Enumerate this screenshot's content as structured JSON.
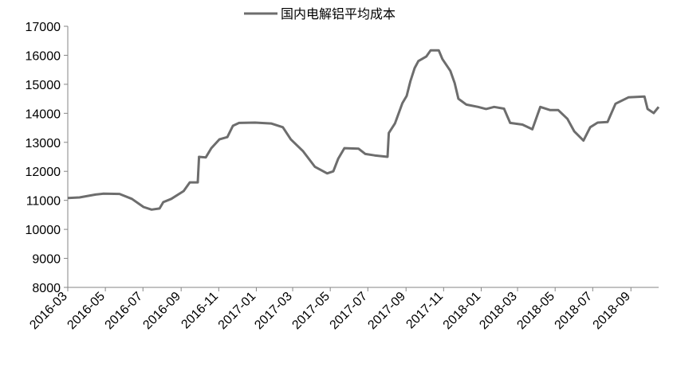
{
  "chart_data": {
    "type": "line",
    "title": "",
    "xlabel": "",
    "ylabel": "",
    "legend_position": "top",
    "grid": false,
    "ylim": [
      8000,
      17000
    ],
    "y_ticks": [
      "8000",
      "9000",
      "10000",
      "11000",
      "12000",
      "13000",
      "14000",
      "15000",
      "16000",
      "17000"
    ],
    "xlim": [
      "2016-03-01",
      "2018-10-16"
    ],
    "x_ticks": [
      "2016-03",
      "2016-05",
      "2016-07",
      "2016-09",
      "2016-11",
      "2017-01",
      "2017-03",
      "2017-05",
      "2017-07",
      "2017-09",
      "2017-11",
      "2018-01",
      "2018-03",
      "2018-05",
      "2018-07",
      "2018-09"
    ],
    "series": [
      {
        "name": "国内电解铝平均成本",
        "color": "#6d6d6d",
        "x": [
          "2016-03-01",
          "2016-03-20",
          "2016-04-15",
          "2016-04-28",
          "2016-05-24",
          "2016-06-13",
          "2016-07-02",
          "2016-07-15",
          "2016-07-28",
          "2016-08-03",
          "2016-08-16",
          "2016-09-05",
          "2016-09-15",
          "2016-09-28",
          "2016-09-30",
          "2016-10-11",
          "2016-10-20",
          "2016-11-02",
          "2016-11-15",
          "2016-11-24",
          "2016-12-04",
          "2016-12-30",
          "2017-01-25",
          "2017-02-13",
          "2017-02-26",
          "2017-03-18",
          "2017-04-06",
          "2017-04-26",
          "2017-05-06",
          "2017-05-14",
          "2017-05-24",
          "2017-06-16",
          "2017-06-27",
          "2017-07-12",
          "2017-08-02",
          "2017-08-04",
          "2017-08-14",
          "2017-08-26",
          "2017-09-02",
          "2017-09-08",
          "2017-09-15",
          "2017-09-21",
          "2017-10-04",
          "2017-10-11",
          "2017-10-24",
          "2017-10-30",
          "2017-11-12",
          "2017-11-19",
          "2017-11-25",
          "2017-12-08",
          "2017-12-27",
          "2018-01-09",
          "2018-01-22",
          "2018-02-07",
          "2018-02-17",
          "2018-03-09",
          "2018-03-25",
          "2018-04-07",
          "2018-04-23",
          "2018-05-06",
          "2018-05-21",
          "2018-06-01",
          "2018-06-16",
          "2018-06-27",
          "2018-07-09",
          "2018-07-25",
          "2018-08-07",
          "2018-08-28",
          "2018-09-23",
          "2018-09-28",
          "2018-10-08",
          "2018-10-16"
        ],
        "values": [
          11080,
          11100,
          11200,
          11230,
          11220,
          11050,
          10770,
          10680,
          10720,
          10940,
          11050,
          11320,
          11620,
          11620,
          12500,
          12480,
          12800,
          13100,
          13180,
          13570,
          13670,
          13680,
          13650,
          13520,
          13100,
          12690,
          12160,
          11930,
          12000,
          12440,
          12800,
          12780,
          12600,
          12550,
          12500,
          13320,
          13650,
          14350,
          14600,
          15100,
          15560,
          15800,
          15960,
          16170,
          16170,
          15870,
          15460,
          15040,
          14500,
          14300,
          14220,
          14150,
          14220,
          14160,
          13670,
          13610,
          13450,
          14220,
          14110,
          14110,
          13810,
          13380,
          13060,
          13520,
          13680,
          13700,
          14330,
          14550,
          14580,
          14150,
          14010,
          14220
        ]
      }
    ]
  }
}
